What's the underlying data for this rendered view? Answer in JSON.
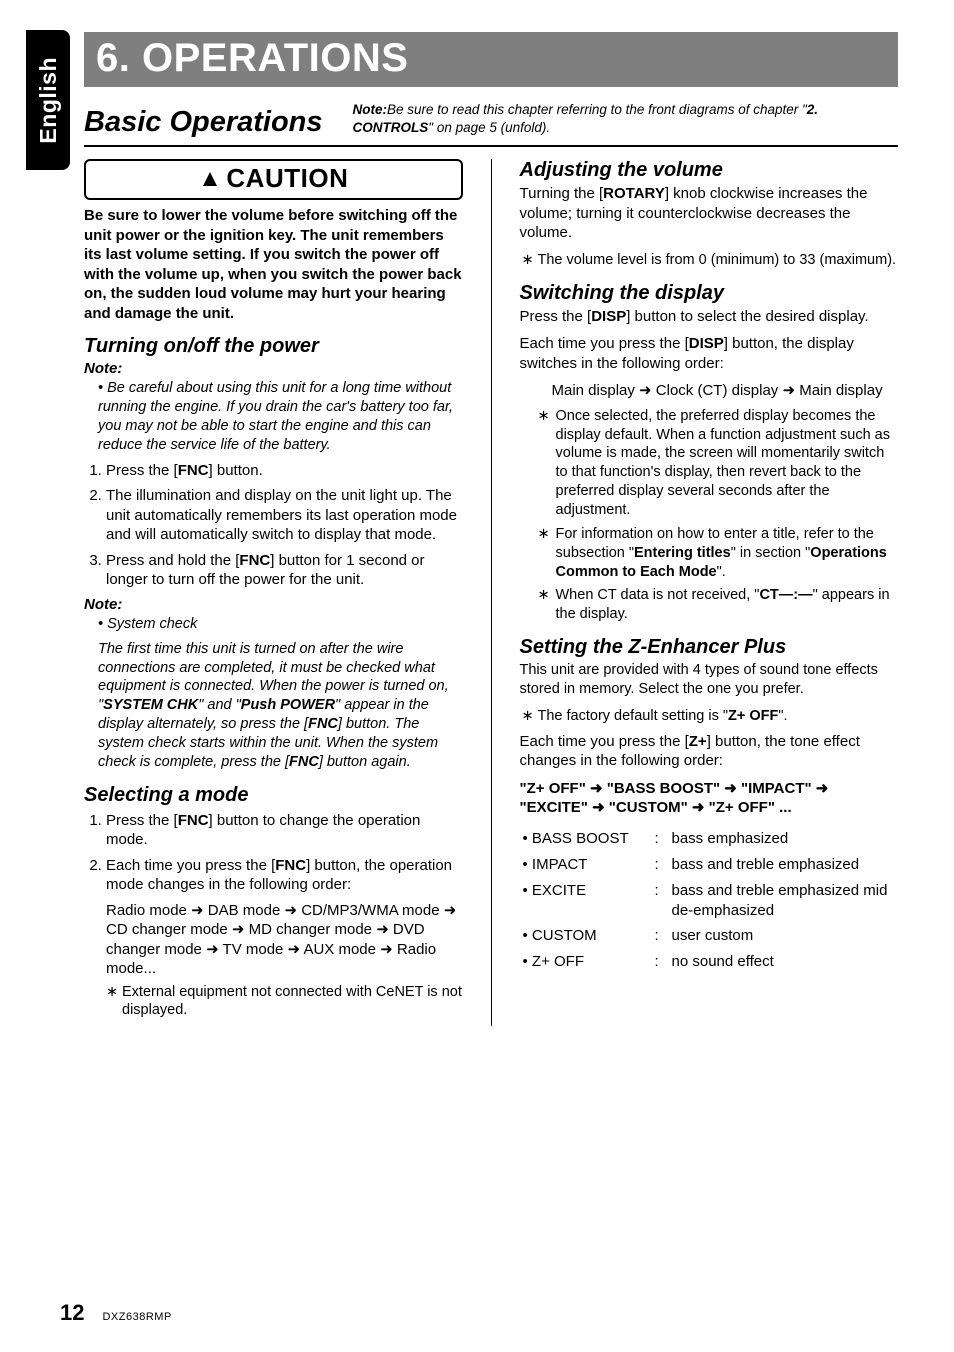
{
  "langTab": "English",
  "chapterTitle": "6. OPERATIONS",
  "sectionTitle": "Basic Operations",
  "sectionNoteLabel": "Note:",
  "sectionNoteText": "Be sure to read this chapter referring to the front diagrams of chapter \"",
  "sectionNoteRef": "2. CONTROLS",
  "sectionNoteTail": "\" on page 5 (unfold).",
  "caution": {
    "label": "CAUTION",
    "text": "Be sure to lower the volume before switching off the unit power or the ignition key. The unit remembers its last volume setting. If you switch the power off with the volume up, when you switch the power back on, the sudden loud volume may hurt your hearing and damage the unit."
  },
  "left": {
    "power": {
      "heading": "Turning on/off the power",
      "noteLabel": "Note:",
      "note": "Be careful about using this unit for a long time without running the engine. If you drain the car's battery too far, you may not be able to start the engine and this can reduce the service life of the battery.",
      "step1a": "Press the [",
      "step1b": "FNC",
      "step1c": "] button.",
      "step2": "The illumination and display on the unit light up. The unit automatically remembers its last operation mode and will automatically switch to display that mode.",
      "step3a": "Press and hold the [",
      "step3b": "FNC",
      "step3c": "] button for 1 second or longer to turn off the power for the unit.",
      "note2Label": "Note:",
      "sysCheckLabel": "System check",
      "sysCheck1": "The first time this unit is turned on after the wire connections are completed, it must be checked what equipment is connected. When the power is turned on, \"",
      "sysCheck2": "SYSTEM CHK",
      "sysCheck3": "\" and \"",
      "sysCheck4": "Push POWER",
      "sysCheck5": "\" appear in the display alternately, so press the [",
      "sysCheck6": "FNC",
      "sysCheck7": "] button. The system check starts within the unit. When the system check is complete, press the [",
      "sysCheck8": "FNC",
      "sysCheck9": "] button again."
    },
    "mode": {
      "heading": "Selecting a mode",
      "step1a": "Press the [",
      "step1b": "FNC",
      "step1c": "] button to change the operation mode.",
      "step2a": "Each time you press the [",
      "step2b": "FNC",
      "step2c": "] button, the operation mode changes in the following order:",
      "seq": "Radio mode ➜ DAB mode ➜ CD/MP3/WMA mode ➜ CD changer mode ➜ MD changer mode ➜ DVD changer mode ➜ TV mode ➜ AUX mode ➜ Radio mode...",
      "note": "External equipment not connected with CeNET is not displayed."
    }
  },
  "right": {
    "volume": {
      "heading": "Adjusting the volume",
      "p1a": "Turning the [",
      "p1b": "ROTARY",
      "p1c": "] knob clockwise increases the volume; turning it counterclockwise decreases the volume.",
      "note": "The volume level is from 0 (minimum) to 33 (maximum)."
    },
    "disp": {
      "heading": "Switching the display",
      "p1a": "Press the [",
      "p1b": "DISP",
      "p1c": "] button to select the desired display.",
      "p2a": "Each time you press the [",
      "p2b": "DISP",
      "p2c": "] button, the display switches in the following order:",
      "seq": "Main display ➜ Clock (CT) display ➜ Main display",
      "n1": "Once selected, the preferred display becomes the display default. When a function adjustment such as volume is made, the screen will momentarily switch to that function's display, then revert back to the preferred display several seconds after the adjustment.",
      "n2a": "For information on how to enter a title, refer to the subsection \"",
      "n2b": "Entering titles",
      "n2c": "\" in section \"",
      "n2d": "Operations Common to Each Mode",
      "n2e": "\".",
      "n3a": "When CT data is not received, \"",
      "n3b": "CT—:—",
      "n3c": "\" appears in the display."
    },
    "z": {
      "heading": "Setting the Z-Enhancer Plus",
      "intro": "This unit are provided with 4 types of sound tone effects stored in memory. Select the one you prefer.",
      "defNote1": "The factory default setting is \"",
      "defNote2": "Z+ OFF",
      "defNote3": "\".",
      "each1": "Each time you press the [",
      "each2": "Z+",
      "each3": "] button, the tone effect changes in the following order:",
      "seq": "\"Z+ OFF\" ➜ \"BASS BOOST\" ➜ \"IMPACT\" ➜ \"EXCITE\" ➜ \"CUSTOM\" ➜ \"Z+ OFF\" ...",
      "rows": [
        {
          "name": "BASS BOOST",
          "desc": "bass emphasized"
        },
        {
          "name": "IMPACT",
          "desc": "bass and treble emphasized"
        },
        {
          "name": "EXCITE",
          "desc": "bass and treble emphasized mid de-emphasized"
        },
        {
          "name": "CUSTOM",
          "desc": "user custom"
        },
        {
          "name": "Z+ OFF",
          "desc": "no sound effect"
        }
      ]
    }
  },
  "footer": {
    "pageNum": "12",
    "model": "DXZ638RMP"
  }
}
